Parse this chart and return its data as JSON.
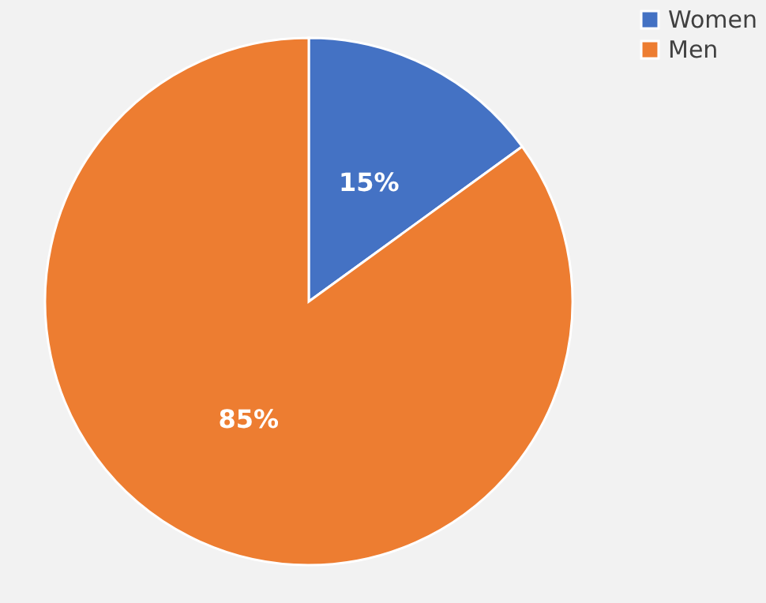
{
  "chart_data": {
    "type": "pie",
    "categories": [
      "Women",
      "Men"
    ],
    "values": [
      15,
      85
    ],
    "colors": [
      "#4472c4",
      "#ed7d31"
    ],
    "value_labels": [
      "15%",
      "85%"
    ],
    "legend": "right"
  }
}
